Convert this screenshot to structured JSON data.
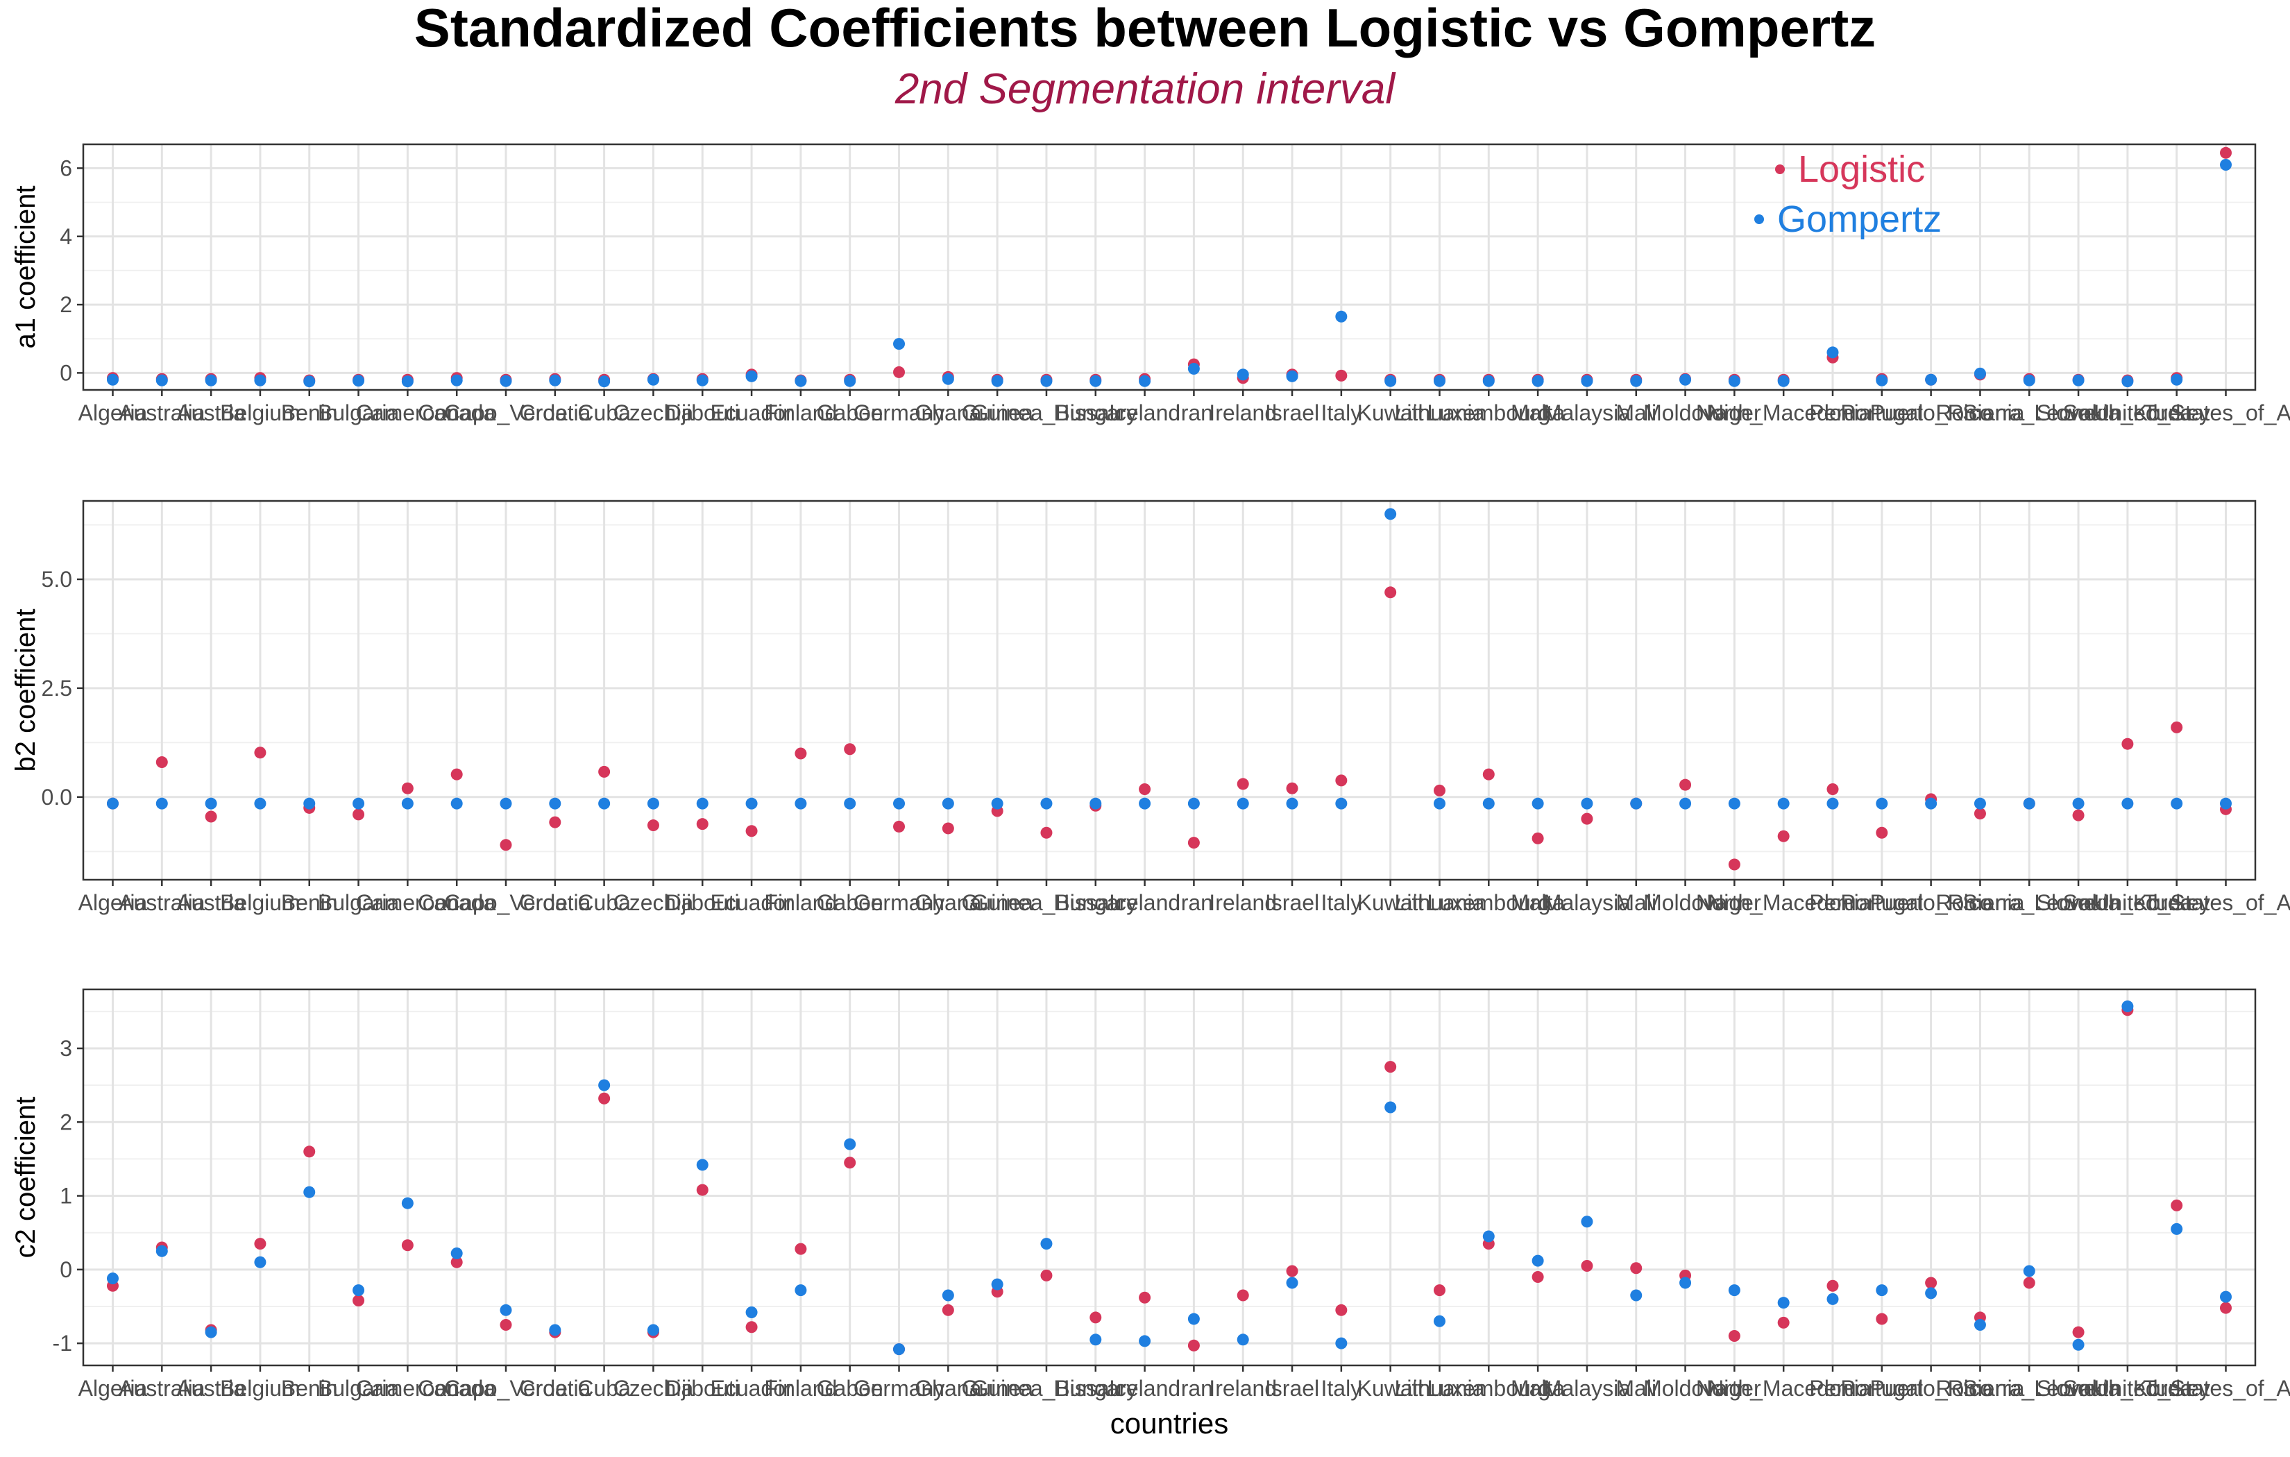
{
  "title": "Standardized Coefficients between Logistic vs Gompertz",
  "subtitle": "2nd Segmentation interval",
  "colors": {
    "logistic": "#d6365a",
    "gompertz": "#1f7fe0",
    "title": "#000000",
    "subtitle": "#a01848"
  },
  "chart_data": [
    {
      "type": "scatter",
      "ylabel": "a1 coefficient",
      "xlabel": "",
      "ylim": [
        -0.5,
        6.7
      ],
      "yticks": [
        0,
        2,
        4,
        6
      ],
      "ytick_labels": [
        "0",
        "2",
        "4",
        "6"
      ],
      "legend": {
        "placement": "top-right-inside",
        "entries": [
          "Logistic",
          "Gompertz"
        ]
      },
      "grid": true,
      "categories": [
        "Algeria",
        "Australia",
        "Austria",
        "Belgium",
        "Benin",
        "Bulgaria",
        "Cameroon",
        "Canada",
        "Capo_Verde",
        "Croatia",
        "Cuba",
        "Czechia",
        "Djibouti",
        "Ecuador",
        "Finland",
        "Gabon",
        "Germany",
        "Ghana",
        "Guinea",
        "Guinea_Bissau",
        "Hungary",
        "Iceland",
        "Iran",
        "Ireland",
        "Israel",
        "Italy",
        "Kuwait",
        "Lithuania",
        "Luxembourg",
        "Malta",
        "Malaysia",
        "Mali",
        "Moldova",
        "Niger",
        "North_Macedonia",
        "Peru",
        "Portugal",
        "Puerto_Rico",
        "Romania",
        "Sierra_Leone",
        "Slovakia",
        "South_Korea",
        "Turkey",
        "United_States_of_America"
      ],
      "series": [
        {
          "name": "Logistic",
          "values": [
            -0.15,
            -0.18,
            -0.18,
            -0.15,
            -0.22,
            -0.2,
            -0.2,
            -0.15,
            -0.2,
            -0.18,
            -0.2,
            -0.18,
            -0.18,
            -0.05,
            -0.22,
            -0.2,
            0.02,
            -0.12,
            -0.2,
            -0.2,
            -0.2,
            -0.18,
            0.25,
            -0.15,
            -0.05,
            -0.08,
            -0.2,
            -0.2,
            -0.2,
            -0.2,
            -0.2,
            -0.2,
            -0.18,
            -0.2,
            -0.2,
            0.45,
            -0.18,
            -0.2,
            -0.05,
            -0.18,
            -0.2,
            -0.22,
            -0.15,
            6.45
          ]
        },
        {
          "name": "Gompertz",
          "values": [
            -0.2,
            -0.22,
            -0.22,
            -0.22,
            -0.25,
            -0.23,
            -0.25,
            -0.22,
            -0.24,
            -0.22,
            -0.25,
            -0.2,
            -0.22,
            -0.1,
            -0.24,
            -0.24,
            0.85,
            -0.18,
            -0.24,
            -0.24,
            -0.24,
            -0.24,
            0.12,
            -0.05,
            -0.1,
            1.65,
            -0.24,
            -0.24,
            -0.24,
            -0.24,
            -0.24,
            -0.24,
            -0.2,
            -0.24,
            -0.24,
            0.6,
            -0.22,
            -0.2,
            -0.02,
            -0.22,
            -0.22,
            -0.25,
            -0.2,
            6.1
          ]
        }
      ]
    },
    {
      "type": "scatter",
      "ylabel": "b2 coefficient",
      "xlabel": "",
      "ylim": [
        -1.9,
        6.8
      ],
      "yticks": [
        0,
        2.5,
        5
      ],
      "ytick_labels": [
        "0.0",
        "2.5",
        "5.0"
      ],
      "grid": true,
      "categories": [
        "Algeria",
        "Australia",
        "Austria",
        "Belgium",
        "Benin",
        "Bulgaria",
        "Cameroon",
        "Canada",
        "Capo_Verde",
        "Croatia",
        "Cuba",
        "Czechia",
        "Djibouti",
        "Ecuador",
        "Finland",
        "Gabon",
        "Germany",
        "Ghana",
        "Guinea",
        "Guinea_Bissau",
        "Hungary",
        "Iceland",
        "Iran",
        "Ireland",
        "Israel",
        "Italy",
        "Kuwait",
        "Lithuania",
        "Luxembourg",
        "Malta",
        "Malaysia",
        "Mali",
        "Moldova",
        "Niger",
        "North_Macedonia",
        "Peru",
        "Portugal",
        "Puerto_Rico",
        "Romania",
        "Sierra_Leone",
        "Slovakia",
        "South_Korea",
        "Turkey",
        "United_States_of_America"
      ],
      "series": [
        {
          "name": "Logistic",
          "values": [
            -0.15,
            0.8,
            -0.45,
            1.02,
            -0.25,
            -0.4,
            0.2,
            0.52,
            -1.1,
            -0.58,
            0.58,
            -0.65,
            -0.62,
            -0.78,
            1.0,
            1.1,
            -0.68,
            -0.72,
            -0.32,
            -0.82,
            -0.2,
            0.18,
            -1.05,
            0.3,
            0.2,
            0.38,
            4.7,
            0.15,
            0.52,
            -0.95,
            -0.5,
            -0.15,
            0.28,
            -1.55,
            -0.9,
            0.18,
            -0.82,
            -0.05,
            -0.38,
            -0.15,
            -0.42,
            1.22,
            1.6,
            -0.28
          ]
        },
        {
          "name": "Gompertz",
          "values": [
            -0.15,
            -0.15,
            -0.15,
            -0.15,
            -0.15,
            -0.15,
            -0.15,
            -0.15,
            -0.15,
            -0.15,
            -0.15,
            -0.15,
            -0.15,
            -0.15,
            -0.15,
            -0.15,
            -0.15,
            -0.15,
            -0.15,
            -0.15,
            -0.15,
            -0.15,
            -0.15,
            -0.15,
            -0.15,
            -0.15,
            6.5,
            -0.15,
            -0.15,
            -0.15,
            -0.15,
            -0.15,
            -0.15,
            -0.15,
            -0.15,
            -0.15,
            -0.15,
            -0.15,
            -0.15,
            -0.15,
            -0.15,
            -0.15,
            -0.15,
            -0.15
          ]
        }
      ]
    },
    {
      "type": "scatter",
      "ylabel": "c2 coefficient",
      "xlabel": "countries",
      "ylim": [
        -1.3,
        3.8
      ],
      "yticks": [
        -1,
        0,
        1,
        2,
        3
      ],
      "ytick_labels": [
        "-1",
        "0",
        "1",
        "2",
        "3"
      ],
      "grid": true,
      "categories": [
        "Algeria",
        "Australia",
        "Austria",
        "Belgium",
        "Benin",
        "Bulgaria",
        "Cameroon",
        "Canada",
        "Capo_Verde",
        "Croatia",
        "Cuba",
        "Czechia",
        "Djibouti",
        "Ecuador",
        "Finland",
        "Gabon",
        "Germany",
        "Ghana",
        "Guinea",
        "Guinea_Bissau",
        "Hungary",
        "Iceland",
        "Iran",
        "Ireland",
        "Israel",
        "Italy",
        "Kuwait",
        "Lithuania",
        "Luxembourg",
        "Malta",
        "Malaysia",
        "Mali",
        "Moldova",
        "Niger",
        "North_Macedonia",
        "Peru",
        "Portugal",
        "Puerto_Rico",
        "Romania",
        "Sierra_Leone",
        "Slovakia",
        "South_Korea",
        "Turkey",
        "United_States_of_America"
      ],
      "series": [
        {
          "name": "Logistic",
          "values": [
            -0.22,
            0.3,
            -0.82,
            0.35,
            1.6,
            -0.42,
            0.33,
            0.1,
            -0.75,
            -0.85,
            2.32,
            -0.85,
            1.08,
            -0.78,
            0.28,
            1.45,
            -1.08,
            -0.55,
            -0.3,
            -0.08,
            -0.65,
            -0.38,
            -1.03,
            -0.35,
            -0.02,
            -0.55,
            2.75,
            -0.28,
            0.35,
            -0.1,
            0.05,
            0.02,
            -0.08,
            -0.9,
            -0.72,
            -0.22,
            -0.67,
            -0.18,
            -0.65,
            -0.18,
            -0.85,
            3.52,
            0.87,
            -0.52
          ]
        },
        {
          "name": "Gompertz",
          "values": [
            -0.12,
            0.25,
            -0.85,
            0.1,
            1.05,
            -0.28,
            0.9,
            0.22,
            -0.55,
            -0.82,
            2.5,
            -0.82,
            1.42,
            -0.58,
            -0.28,
            1.7,
            -1.08,
            -0.35,
            -0.2,
            0.35,
            -0.95,
            -0.97,
            -0.67,
            -0.95,
            -0.18,
            -1.0,
            2.2,
            -0.7,
            0.45,
            0.12,
            0.65,
            -0.35,
            -0.18,
            -0.28,
            -0.45,
            -0.4,
            -0.28,
            -0.32,
            -0.75,
            -0.02,
            -1.02,
            3.57,
            0.55,
            -0.37
          ]
        }
      ]
    }
  ]
}
